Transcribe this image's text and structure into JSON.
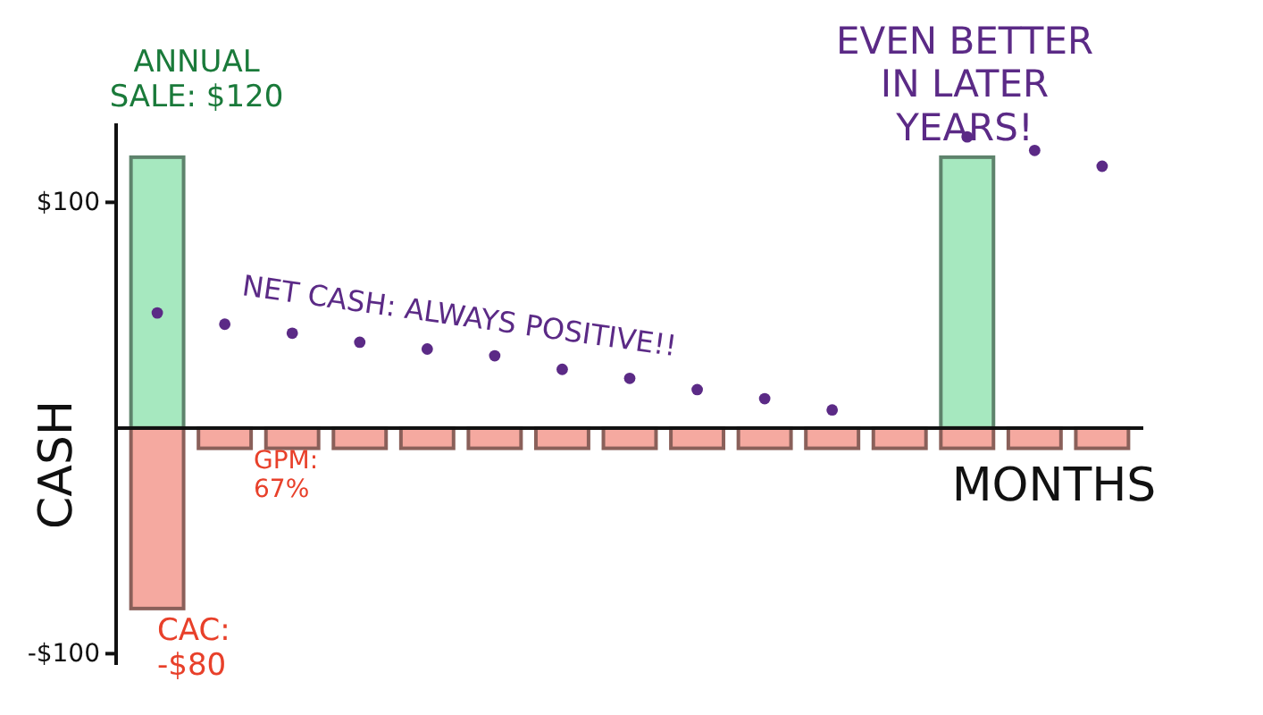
{
  "chart_data": {
    "type": "bar",
    "stacked": true,
    "xlabel": "MONTHS",
    "ylabel": "CASH",
    "categories": [
      null,
      null,
      null,
      null,
      null,
      null,
      null,
      null,
      null,
      null,
      null,
      null,
      null,
      null,
      null
    ],
    "series": [
      {
        "color": "#a6e8bf",
        "values": [
          120,
          null,
          null,
          null,
          null,
          null,
          null,
          null,
          null,
          null,
          null,
          null,
          120,
          null,
          null
        ]
      },
      {
        "color": "#f5a9a0",
        "values": [
          -80,
          -9,
          -9,
          -9,
          -9,
          -9,
          -9,
          -9,
          -9,
          -9,
          -9,
          -9,
          -9,
          -9,
          -9
        ]
      },
      {
        "type": "scatter",
        "color": "#5b2a86",
        "values": [
          51,
          46,
          42,
          38,
          35,
          32,
          26,
          22,
          17,
          13,
          8,
          null,
          129,
          123,
          116
        ]
      }
    ],
    "ylim": [
      -105,
      135
    ],
    "yticks": [
      {
        "value": -100,
        "label": "-$100"
      },
      {
        "value": 100,
        "label": "$100"
      }
    ],
    "annotations": [
      "ANNUAL SALE: $120",
      "CAC: -$80",
      "GPM: 67%",
      "NET CASH: ALWAYS POSITIVE!!",
      "EVEN BETTER IN LATER YEARS!"
    ],
    "grid": false
  }
}
